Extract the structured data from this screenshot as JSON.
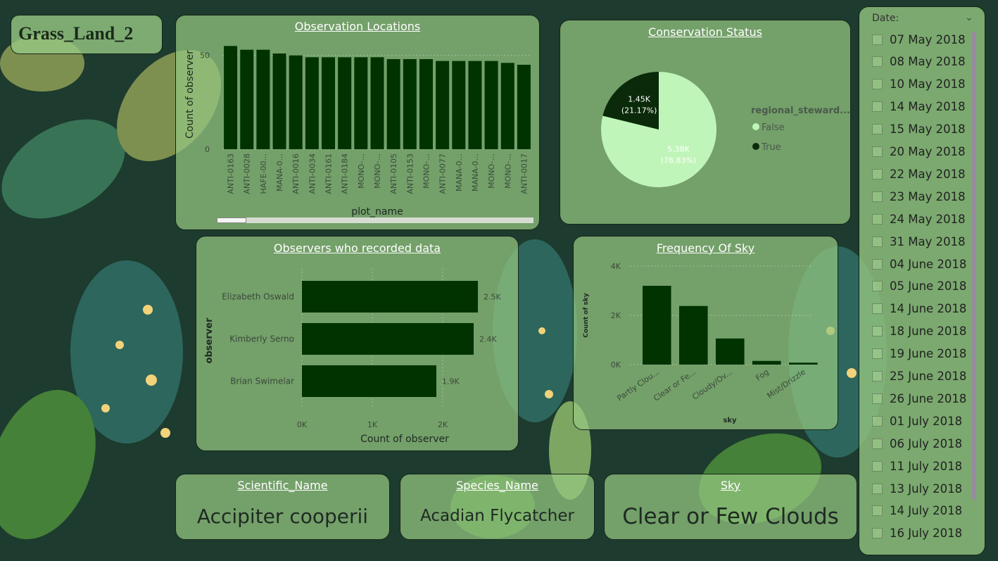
{
  "report_title": "Grass_Land_2",
  "colors": {
    "bar": "#003300",
    "pie_false": "#bff5b8",
    "pie_true": "#0a2a0a",
    "panel": "#96c882",
    "background": "#1d3b2e"
  },
  "visuals": {
    "locations": {
      "title": "Observation Locations",
      "chart_data": {
        "type": "bar",
        "title": "Observation Locations",
        "xlabel": "plot_name",
        "ylabel": "Count of observer",
        "ylim": [
          0,
          60
        ],
        "yticks": [
          "0",
          "50"
        ],
        "categories": [
          "ANTI-0163",
          "ANTI-0028",
          "HAFE-00...",
          "MANA-0...",
          "ANTI-0016",
          "ANTI-0034",
          "ANTI-0161",
          "ANTI-0184",
          "MONO-...",
          "MONO-...",
          "ANTI-0105",
          "ANTI-0153",
          "MONO-...",
          "ANTI-0077",
          "MANA-0...",
          "MANA-0...",
          "MONO-...",
          "MONO-...",
          "ANTI-0017"
        ],
        "values": [
          55,
          53,
          53,
          51,
          50,
          49,
          49,
          49,
          49,
          49,
          48,
          48,
          48,
          47,
          47,
          47,
          47,
          46,
          45
        ]
      }
    },
    "conservation": {
      "title": "Conservation Status",
      "chart_data": {
        "type": "pie",
        "title": "Conservation Status",
        "legend_title": "regional_steward...",
        "legend_position": "right",
        "slices": [
          {
            "name": "False",
            "value": 5380,
            "label": "5.38K",
            "pct_label": "(78.83%)",
            "share": 0.7883
          },
          {
            "name": "True",
            "value": 1450,
            "label": "1.45K",
            "pct_label": "(21.17%)",
            "share": 0.2117
          }
        ]
      }
    },
    "observers": {
      "title": "Observers who recorded data",
      "chart_data": {
        "type": "bar",
        "orientation": "horizontal",
        "title": "Observers who recorded data",
        "xlabel": "Count of observer",
        "ylabel": "observer",
        "xlim": [
          0,
          2500
        ],
        "xticks": [
          "0K",
          "1K",
          "2K"
        ],
        "categories": [
          "Elizabeth Oswald",
          "Kimberly Serno",
          "Brian Swimelar"
        ],
        "values": [
          2500,
          2440,
          1910
        ],
        "value_labels": [
          "2.5K",
          "2.4K",
          "1.9K"
        ]
      }
    },
    "sky": {
      "title": "Frequency Of Sky",
      "chart_data": {
        "type": "bar",
        "title": "Frequency Of Sky",
        "xlabel": "sky",
        "ylabel": "Count of sky",
        "ylim": [
          0,
          4000
        ],
        "yticks": [
          "0K",
          "2K",
          "4K"
        ],
        "categories": [
          "Partly Clou...",
          "Clear or Fe...",
          "Cloudy/Ov...",
          "Fog",
          "Mist/Drizzle"
        ],
        "values": [
          3200,
          2380,
          1060,
          150,
          80
        ]
      }
    }
  },
  "cards": [
    {
      "label": "Scientific_Name",
      "value": "Accipiter cooperii"
    },
    {
      "label": "Species_Name",
      "value": "Acadian Flycatcher"
    },
    {
      "label": "Sky",
      "value": "Clear or Few Clouds"
    }
  ],
  "slicer": {
    "header": "Date:",
    "dates": [
      "07 May 2018",
      "08 May 2018",
      "10 May 2018",
      "14 May 2018",
      "15 May 2018",
      "20 May 2018",
      "22 May 2018",
      "23 May 2018",
      "24 May 2018",
      "31 May 2018",
      "04 June 2018",
      "05 June 2018",
      "14 June 2018",
      "18 June 2018",
      "19 June 2018",
      "25 June 2018",
      "26 June 2018",
      "01 July 2018",
      "06 July 2018",
      "11 July 2018",
      "13 July 2018",
      "14 July 2018",
      "16 July 2018"
    ]
  }
}
